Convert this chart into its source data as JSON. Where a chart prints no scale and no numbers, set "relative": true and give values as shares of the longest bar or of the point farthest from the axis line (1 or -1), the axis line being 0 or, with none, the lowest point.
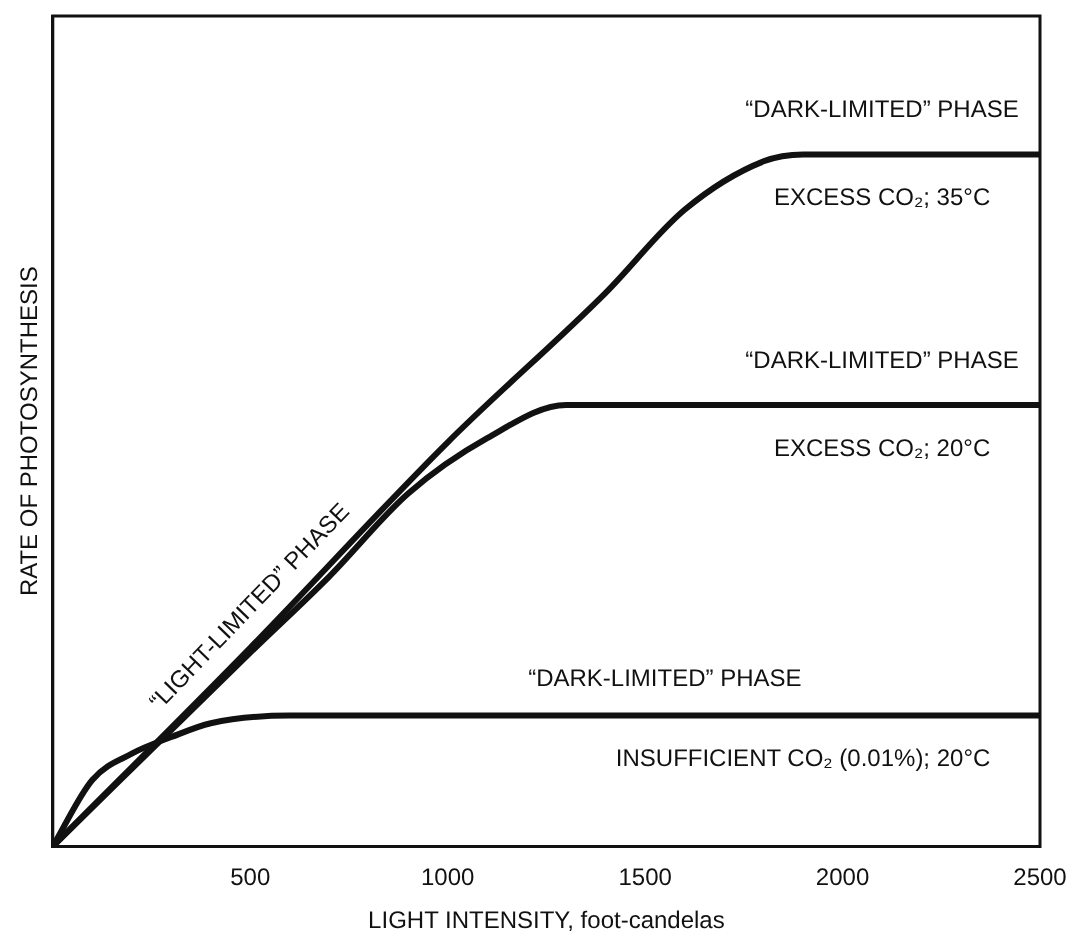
{
  "chart_data": {
    "type": "line",
    "xlabel": "LIGHT INTENSITY, foot-candelas",
    "ylabel": "RATE OF PHOTOSYNTHESIS",
    "relative": true,
    "xlim": [
      0,
      2500
    ],
    "xticks": [
      500,
      1000,
      1500,
      2000,
      2500
    ],
    "tick_labels": "x",
    "grid": false,
    "legend": false,
    "marker": "none",
    "line_style": "solid",
    "series": [
      {
        "color": "#111111",
        "x": [
          0,
          500,
          1000,
          1400,
          1600,
          1800,
          1900,
          2500
        ],
        "values": [
          0,
          0.287,
          0.584,
          0.8,
          0.92,
          0.99,
          1,
          1
        ]
      },
      {
        "color": "#111111",
        "x": [
          0,
          500,
          700,
          900,
          1100,
          1300,
          2500
        ],
        "values": [
          0,
          0.28,
          0.39,
          0.51,
          0.59,
          0.638,
          0.638
        ]
      },
      {
        "color": "#111111",
        "x": [
          0,
          100,
          200,
          300,
          400,
          600,
          2500
        ],
        "values": [
          0,
          0.096,
          0.134,
          0.158,
          0.178,
          0.189,
          0.189
        ]
      }
    ],
    "annotations": [
      "“DARK-LIMITED” PHASE",
      "EXCESS CO₂; 35°C",
      "“DARK-LIMITED” PHASE",
      "EXCESS CO₂; 20°C",
      "“LIGHT-LIMITED” PHASE",
      "“DARK-LIMITED” PHASE",
      "INSUFFICIENT CO₂ (0.01%); 20°C"
    ]
  }
}
